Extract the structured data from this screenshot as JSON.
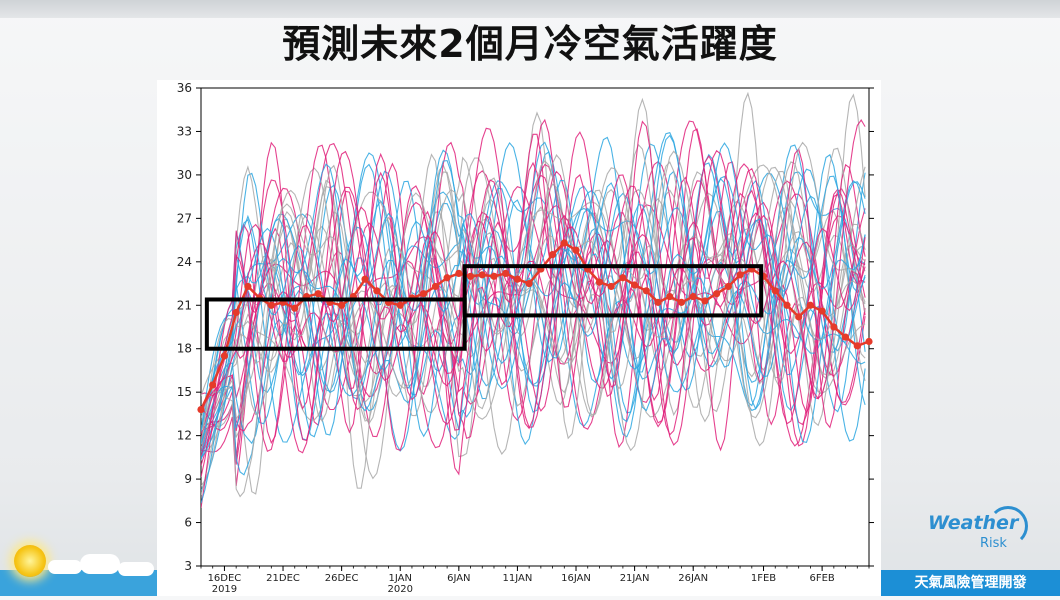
{
  "title": "預測未來2個月冷空氣活躍度",
  "brand": {
    "name": "Weather",
    "sub": "Risk",
    "tagline": "天氣風險管理開發"
  },
  "colors": {
    "gray": "#a8a8a8",
    "blue": "#2aa6e0",
    "pink": "#e0207a",
    "mean": "#e53a2a",
    "box": "#000000"
  },
  "chart_data": {
    "type": "line",
    "ylim": [
      3,
      36
    ],
    "yticks": [
      3,
      6,
      9,
      12,
      15,
      18,
      21,
      24,
      27,
      30,
      33,
      36
    ],
    "xlim": [
      0,
      57
    ],
    "xticks": [
      {
        "x": 2,
        "label": "16DEC",
        "sub": "2019"
      },
      {
        "x": 7,
        "label": "21DEC",
        "sub": ""
      },
      {
        "x": 12,
        "label": "26DEC",
        "sub": ""
      },
      {
        "x": 17,
        "label": "1JAN",
        "sub": "2020"
      },
      {
        "x": 22,
        "label": "6JAN",
        "sub": ""
      },
      {
        "x": 27,
        "label": "11JAN",
        "sub": ""
      },
      {
        "x": 32,
        "label": "16JAN",
        "sub": ""
      },
      {
        "x": 37,
        "label": "21JAN",
        "sub": ""
      },
      {
        "x": 42,
        "label": "26JAN",
        "sub": ""
      },
      {
        "x": 48,
        "label": "1FEB",
        "sub": ""
      },
      {
        "x": 53,
        "label": "6FEB",
        "sub": ""
      }
    ],
    "mean": [
      [
        0,
        13.8
      ],
      [
        1,
        15.5
      ],
      [
        2,
        17.5
      ],
      [
        3,
        20.5
      ],
      [
        4,
        22.3
      ],
      [
        5,
        21.5
      ],
      [
        6,
        21.0
      ],
      [
        7,
        21.2
      ],
      [
        8,
        20.8
      ],
      [
        9,
        21.6
      ],
      [
        10,
        21.8
      ],
      [
        11,
        21.2
      ],
      [
        12,
        21.0
      ],
      [
        13,
        21.6
      ],
      [
        14,
        22.8
      ],
      [
        15,
        22.0
      ],
      [
        16,
        21.2
      ],
      [
        17,
        21.0
      ],
      [
        18,
        21.5
      ],
      [
        19,
        21.8
      ],
      [
        20,
        22.3
      ],
      [
        21,
        22.9
      ],
      [
        22,
        23.2
      ],
      [
        23,
        23.0
      ],
      [
        24,
        23.1
      ],
      [
        25,
        23.0
      ],
      [
        26,
        23.2
      ],
      [
        27,
        22.8
      ],
      [
        28,
        22.5
      ],
      [
        29,
        23.5
      ],
      [
        30,
        24.5
      ],
      [
        31,
        25.3
      ],
      [
        32,
        24.8
      ],
      [
        33,
        23.5
      ],
      [
        34,
        22.6
      ],
      [
        35,
        22.3
      ],
      [
        36,
        22.9
      ],
      [
        37,
        22.4
      ],
      [
        38,
        22.0
      ],
      [
        39,
        21.2
      ],
      [
        40,
        21.6
      ],
      [
        41,
        21.2
      ],
      [
        42,
        21.6
      ],
      [
        43,
        21.3
      ],
      [
        44,
        21.8
      ],
      [
        45,
        22.3
      ],
      [
        46,
        23.1
      ],
      [
        47,
        23.5
      ],
      [
        48,
        23.0
      ],
      [
        49,
        22.0
      ],
      [
        50,
        21.0
      ],
      [
        51,
        20.2
      ],
      [
        52,
        21.0
      ],
      [
        53,
        20.6
      ],
      [
        54,
        19.5
      ],
      [
        55,
        18.8
      ],
      [
        56,
        18.2
      ],
      [
        57,
        18.5
      ]
    ],
    "boxes": [
      {
        "x0": 0.5,
        "x1": 22.5,
        "y0": 18.0,
        "y1": 21.4
      },
      {
        "x0": 22.5,
        "x1": 47.8,
        "y0": 20.3,
        "y1": 23.7
      }
    ]
  }
}
